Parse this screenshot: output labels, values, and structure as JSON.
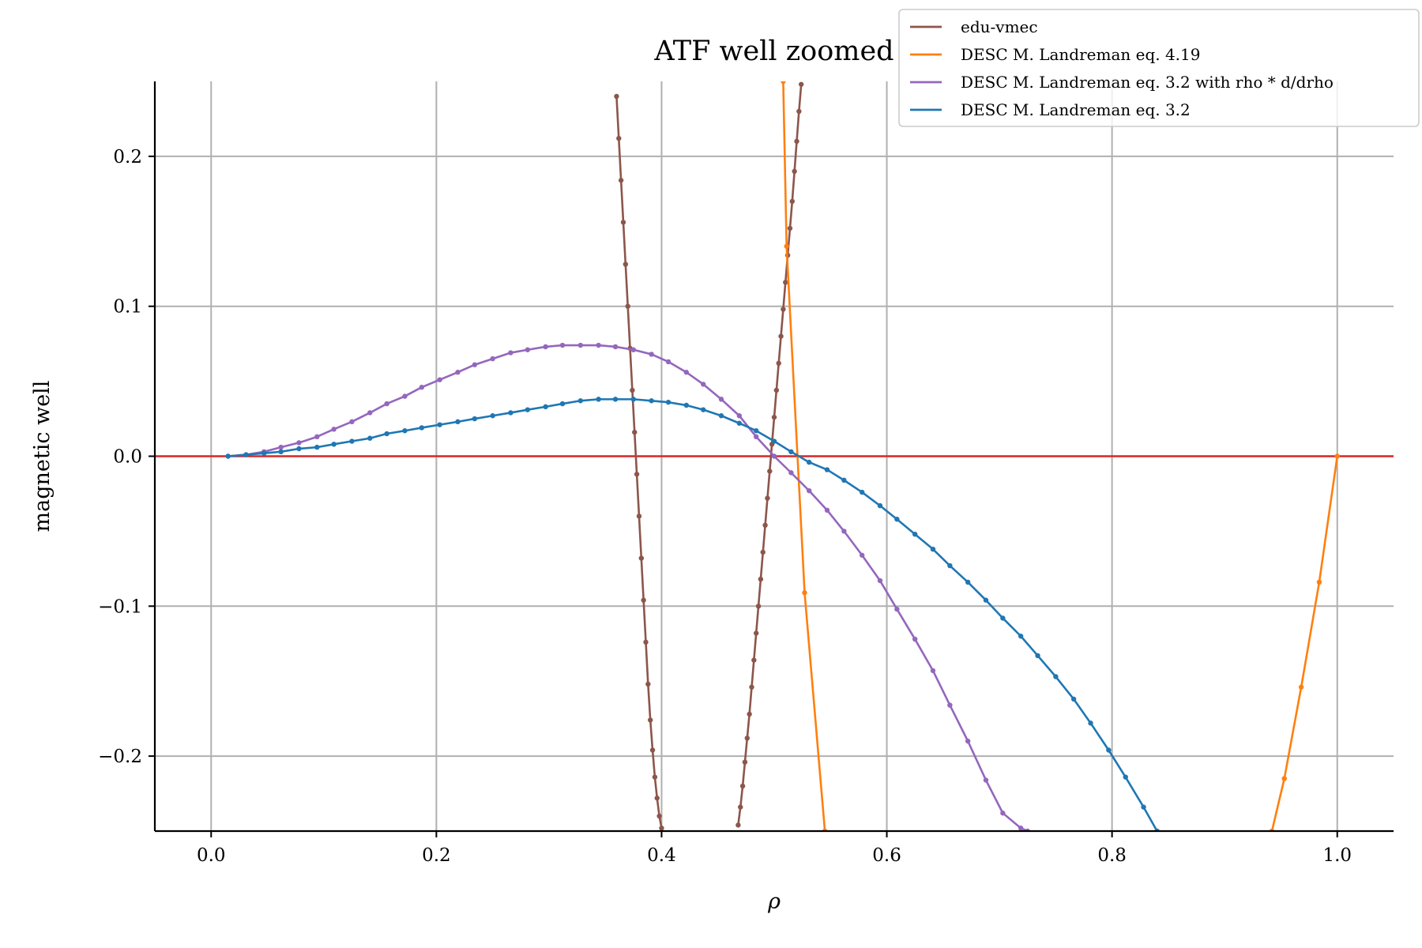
{
  "chart_data": {
    "type": "line",
    "title": "ATF well zoomed",
    "xlabel": "ρ",
    "ylabel": "magnetic well",
    "xlim": [
      -0.05,
      1.05
    ],
    "ylim": [
      -0.25,
      0.25
    ],
    "xticks": [
      0.0,
      0.2,
      0.4,
      0.6,
      0.8,
      1.0
    ],
    "xtick_labels": [
      "0.0",
      "0.2",
      "0.4",
      "0.6",
      "0.8",
      "1.0"
    ],
    "yticks": [
      -0.2,
      -0.1,
      0.0,
      0.1,
      0.2
    ],
    "ytick_labels": [
      "−0.2",
      "−0.1",
      "0.0",
      "0.1",
      "0.2"
    ],
    "grid": true,
    "legend_position": "top-right",
    "zero_line_color": "#d62728",
    "series": [
      {
        "name": "edu-vmec",
        "color": "#8c564b",
        "markers": true,
        "x": [
          0.36,
          0.362,
          0.364,
          0.366,
          0.368,
          0.37,
          0.372,
          0.374,
          0.376,
          0.378,
          0.38,
          0.382,
          0.384,
          0.386,
          0.388,
          0.39,
          0.392,
          0.394,
          0.396,
          0.398,
          0.4
        ],
        "y": [
          0.24,
          0.212,
          0.184,
          0.156,
          0.128,
          0.1,
          0.072,
          0.044,
          0.016,
          -0.012,
          -0.04,
          -0.068,
          -0.096,
          -0.124,
          -0.152,
          -0.176,
          -0.196,
          -0.214,
          -0.228,
          -0.24,
          -0.248
        ]
      },
      {
        "name": "edu-vmec",
        "color": "#8c564b",
        "markers": true,
        "x": [
          0.468,
          0.47,
          0.472,
          0.474,
          0.476,
          0.478,
          0.48,
          0.482,
          0.484,
          0.486,
          0.488,
          0.49,
          0.492,
          0.494,
          0.496,
          0.498,
          0.5,
          0.502,
          0.504,
          0.506,
          0.508,
          0.51,
          0.512,
          0.514,
          0.516,
          0.518,
          0.52,
          0.522,
          0.524
        ],
        "y": [
          -0.246,
          -0.234,
          -0.22,
          -0.204,
          -0.188,
          -0.172,
          -0.154,
          -0.136,
          -0.118,
          -0.1,
          -0.082,
          -0.064,
          -0.046,
          -0.028,
          -0.01,
          0.008,
          0.026,
          0.044,
          0.062,
          0.08,
          0.098,
          0.116,
          0.134,
          0.152,
          0.17,
          0.19,
          0.21,
          0.23,
          0.248
        ]
      },
      {
        "name": "DESC M. Landreman eq. 4.19",
        "color": "#ff7f0e",
        "markers": true,
        "x": [
          0.508,
          0.511,
          0.527,
          0.545
        ],
        "y": [
          0.25,
          0.14,
          -0.091,
          -0.25
        ]
      },
      {
        "name": "DESC M. Landreman eq. 4.19",
        "color": "#ff7f0e",
        "markers": true,
        "x": [
          0.942,
          0.953,
          0.968,
          0.984,
          1.0
        ],
        "y": [
          -0.25,
          -0.215,
          -0.154,
          -0.084,
          0.0
        ]
      },
      {
        "name": "DESC M. Landreman eq. 3.2 with rho * d/drho",
        "color": "#9467bd",
        "markers": true,
        "x": [
          0.015,
          0.031,
          0.047,
          0.062,
          0.078,
          0.094,
          0.109,
          0.125,
          0.141,
          0.156,
          0.172,
          0.187,
          0.203,
          0.219,
          0.234,
          0.25,
          0.266,
          0.281,
          0.297,
          0.312,
          0.328,
          0.344,
          0.359,
          0.375,
          0.391,
          0.406,
          0.422,
          0.437,
          0.453,
          0.469,
          0.484,
          0.5,
          0.515,
          0.531,
          0.547,
          0.562,
          0.578,
          0.594,
          0.609,
          0.625,
          0.641,
          0.656,
          0.672,
          0.688,
          0.703,
          0.719,
          0.725
        ],
        "y": [
          0.0,
          0.001,
          0.003,
          0.006,
          0.009,
          0.013,
          0.018,
          0.023,
          0.029,
          0.035,
          0.04,
          0.046,
          0.051,
          0.056,
          0.061,
          0.065,
          0.069,
          0.071,
          0.073,
          0.074,
          0.074,
          0.074,
          0.073,
          0.071,
          0.068,
          0.063,
          0.056,
          0.048,
          0.038,
          0.027,
          0.013,
          0.0,
          -0.011,
          -0.023,
          -0.036,
          -0.05,
          -0.066,
          -0.083,
          -0.102,
          -0.122,
          -0.143,
          -0.166,
          -0.19,
          -0.216,
          -0.238,
          -0.248,
          -0.25
        ]
      },
      {
        "name": "DESC M. Landreman eq. 3.2",
        "color": "#1f77b4",
        "markers": true,
        "x": [
          0.015,
          0.031,
          0.047,
          0.062,
          0.078,
          0.094,
          0.109,
          0.125,
          0.141,
          0.156,
          0.172,
          0.187,
          0.203,
          0.219,
          0.234,
          0.25,
          0.266,
          0.281,
          0.297,
          0.312,
          0.328,
          0.344,
          0.359,
          0.375,
          0.391,
          0.406,
          0.422,
          0.437,
          0.453,
          0.469,
          0.484,
          0.5,
          0.515,
          0.531,
          0.547,
          0.562,
          0.578,
          0.594,
          0.609,
          0.625,
          0.641,
          0.656,
          0.672,
          0.688,
          0.703,
          0.719,
          0.734,
          0.75,
          0.766,
          0.781,
          0.797,
          0.812,
          0.828,
          0.84
        ],
        "y": [
          0.0,
          0.001,
          0.002,
          0.003,
          0.005,
          0.006,
          0.008,
          0.01,
          0.012,
          0.015,
          0.017,
          0.019,
          0.021,
          0.023,
          0.025,
          0.027,
          0.029,
          0.031,
          0.033,
          0.035,
          0.037,
          0.038,
          0.038,
          0.038,
          0.037,
          0.036,
          0.034,
          0.031,
          0.027,
          0.022,
          0.017,
          0.01,
          0.003,
          -0.004,
          -0.009,
          -0.016,
          -0.024,
          -0.033,
          -0.042,
          -0.052,
          -0.062,
          -0.073,
          -0.084,
          -0.096,
          -0.108,
          -0.12,
          -0.133,
          -0.147,
          -0.162,
          -0.178,
          -0.196,
          -0.214,
          -0.234,
          -0.25
        ]
      }
    ],
    "legend": [
      {
        "label": "edu-vmec",
        "color": "#8c564b"
      },
      {
        "label": "DESC M. Landreman eq. 4.19",
        "color": "#ff7f0e"
      },
      {
        "label": "DESC M. Landreman eq. 3.2 with rho * d/drho",
        "color": "#9467bd"
      },
      {
        "label": "DESC M. Landreman eq. 3.2",
        "color": "#1f77b4"
      }
    ]
  }
}
